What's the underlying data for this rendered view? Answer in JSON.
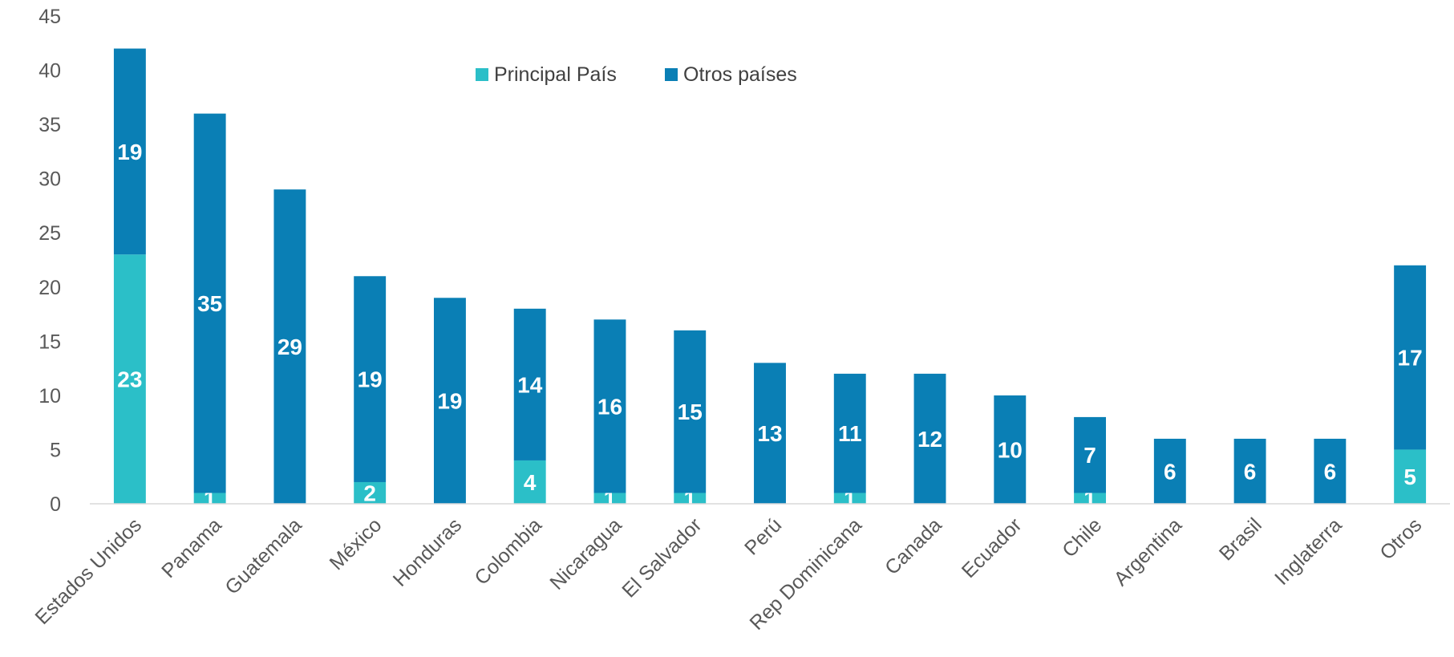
{
  "chart_data": {
    "type": "bar",
    "stacked": true,
    "categories": [
      "Estados Unidos",
      "Panama",
      "Guatemala",
      "México",
      "Honduras",
      "Colombia",
      "Nicaragua",
      "El Salvador",
      "Perú",
      "Rep Dominicana",
      "Canada",
      "Ecuador",
      "Chile",
      "Argentina",
      "Brasil",
      "Inglaterra",
      "Otros"
    ],
    "series": [
      {
        "name": "Principal País",
        "color": "#2BBFC8",
        "values": [
          23,
          1,
          0,
          2,
          0,
          4,
          1,
          1,
          0,
          1,
          0,
          0,
          1,
          0,
          0,
          0,
          5
        ]
      },
      {
        "name": "Otros países",
        "color": "#0A7FB5",
        "values": [
          19,
          35,
          29,
          19,
          19,
          14,
          16,
          15,
          13,
          11,
          12,
          10,
          7,
          6,
          6,
          6,
          17
        ]
      }
    ],
    "ylim": [
      0,
      45
    ],
    "yticks": [
      "0",
      "5",
      "10",
      "15",
      "20",
      "25",
      "30",
      "35",
      "40",
      "45"
    ],
    "legend_position": "top-center",
    "grid": false
  }
}
